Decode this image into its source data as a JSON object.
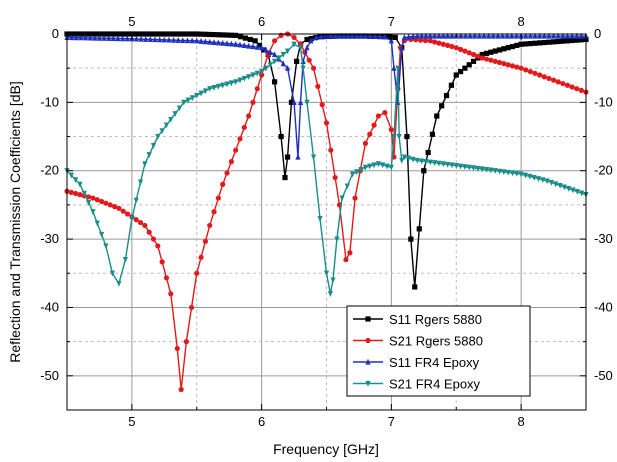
{
  "chart_data": {
    "type": "line",
    "title": "",
    "xlabel": "Frequency [GHz]",
    "ylabel": "Reflection and Transmission Coefficients [dB]",
    "xlim": [
      4.5,
      8.5
    ],
    "ylim": [
      -55,
      0
    ],
    "x_ticks": [
      "5",
      "6",
      "7",
      "8"
    ],
    "x_ticks_top": [
      "5",
      "6",
      "7",
      "8"
    ],
    "y_ticks": [
      "0",
      "-10",
      "-20",
      "-30",
      "-40",
      "-50"
    ],
    "y_ticks_right": [
      "0",
      "-10",
      "-20",
      "-30",
      "-40",
      "-50"
    ],
    "grid": true,
    "legend_position": "bottom-right",
    "series": [
      {
        "name": "S11 Rgers 5880",
        "color": "#000000",
        "marker": "square",
        "x": [
          4.5,
          5.0,
          5.5,
          5.8,
          5.95,
          6.05,
          6.1,
          6.15,
          6.18,
          6.2,
          6.23,
          6.27,
          6.3,
          6.35,
          6.45,
          6.6,
          6.8,
          6.95,
          7.03,
          7.08,
          7.12,
          7.15,
          7.18,
          7.25,
          7.35,
          7.5,
          7.7,
          8.0,
          8.5
        ],
        "y": [
          0,
          0,
          0,
          -0.2,
          -1,
          -3,
          -7,
          -15,
          -21,
          -18,
          -10,
          -4,
          -1.5,
          -0.8,
          -0.4,
          -0.3,
          -0.3,
          -0.4,
          -0.5,
          -2,
          -15,
          -30,
          -37,
          -20,
          -12,
          -6,
          -3,
          -1.5,
          -0.8
        ]
      },
      {
        "name": "S21 Rgers 5880",
        "color": "#e31a1c",
        "marker": "circle",
        "x": [
          4.5,
          4.7,
          4.9,
          5.1,
          5.2,
          5.3,
          5.35,
          5.38,
          5.42,
          5.5,
          5.6,
          5.7,
          5.8,
          5.9,
          6.0,
          6.05,
          6.1,
          6.15,
          6.2,
          6.25,
          6.3,
          6.4,
          6.5,
          6.6,
          6.65,
          6.68,
          6.72,
          6.8,
          6.9,
          6.95,
          7.0,
          7.02,
          7.05,
          7.07,
          7.1,
          7.15,
          7.3,
          7.5,
          7.7,
          8.0,
          8.5
        ],
        "y": [
          -23,
          -24,
          -25.5,
          -28,
          -31,
          -38,
          -46,
          -52,
          -45,
          -35,
          -28,
          -22,
          -17,
          -12,
          -6,
          -3,
          -1,
          -0.2,
          0,
          -0.5,
          -1.5,
          -5,
          -13,
          -25,
          -33,
          -32,
          -24,
          -16,
          -12,
          -11.5,
          -14,
          -18,
          -8,
          -2,
          -1,
          -0.8,
          -1,
          -2,
          -3.5,
          -5,
          -8.5
        ]
      },
      {
        "name": "S11 FR4 Epoxy",
        "color": "#1f2fbf",
        "marker": "triangle-up",
        "x": [
          4.5,
          5.0,
          5.5,
          5.8,
          6.0,
          6.1,
          6.2,
          6.25,
          6.28,
          6.3,
          6.32,
          6.35,
          6.38,
          6.42,
          6.5,
          6.6,
          6.8,
          6.95,
          7.0,
          7.02,
          7.05,
          7.08,
          7.1,
          7.2,
          7.5,
          8.0,
          8.5
        ],
        "y": [
          -0.5,
          -0.7,
          -1,
          -1.5,
          -2,
          -3,
          -5,
          -10,
          -18,
          -10,
          -4,
          -2,
          -1,
          -0.5,
          -0.3,
          -0.3,
          -0.3,
          -0.4,
          -1,
          -5,
          -10,
          -2,
          -0.5,
          -0.3,
          -0.3,
          -0.3,
          -0.3
        ]
      },
      {
        "name": "S21 FR4 Epoxy",
        "color": "#1a8c8c",
        "marker": "triangle-down",
        "x": [
          4.5,
          4.6,
          4.7,
          4.8,
          4.85,
          4.9,
          4.95,
          5.0,
          5.1,
          5.2,
          5.4,
          5.6,
          5.8,
          6.0,
          6.1,
          6.2,
          6.25,
          6.3,
          6.32,
          6.35,
          6.4,
          6.45,
          6.5,
          6.53,
          6.55,
          6.58,
          6.62,
          6.7,
          6.8,
          6.9,
          7.0,
          7.02,
          7.05,
          7.06,
          7.08,
          7.1,
          7.2,
          7.4,
          7.6,
          7.8,
          8.0,
          8.2,
          8.5
        ],
        "y": [
          -20,
          -22,
          -26,
          -31,
          -35,
          -36.5,
          -33,
          -27,
          -19,
          -15,
          -10,
          -8,
          -7,
          -5.5,
          -4,
          -2.5,
          -1.5,
          -2,
          -5,
          -10,
          -18,
          -27,
          -35,
          -38,
          -36,
          -30,
          -24,
          -20.5,
          -19.5,
          -19,
          -19.5,
          -15,
          -5,
          -15,
          -18.5,
          -18,
          -18.5,
          -19,
          -19.5,
          -20,
          -20.5,
          -21.5,
          -23.5
        ]
      }
    ]
  }
}
